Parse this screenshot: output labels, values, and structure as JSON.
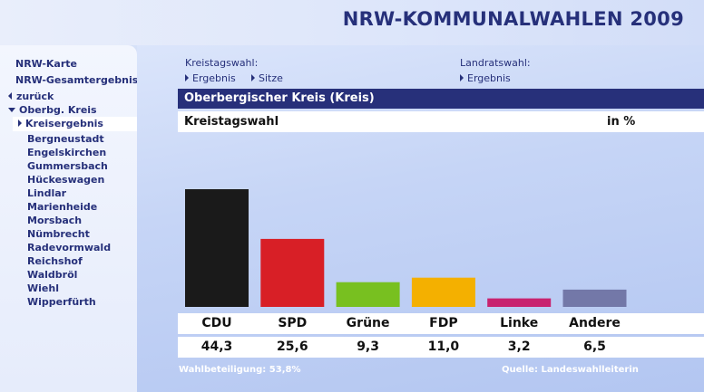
{
  "header": {
    "title": "NRW-KOMMUNALWAHLEN 2009"
  },
  "sidebar": {
    "top_links": [
      "NRW-Karte",
      "NRW-Gesamtergebnis"
    ],
    "back_label": "zurück",
    "section_label": "Oberbg. Kreis",
    "current_item": "Kreisergebnis",
    "items": [
      "Bergneustadt",
      "Engelskirchen",
      "Gummersbach",
      "Hückeswagen",
      "Lindlar",
      "Marienheide",
      "Morsbach",
      "Nümbrecht",
      "Radevormwald",
      "Reichshof",
      "Waldbröl",
      "Wiehl",
      "Wipperfürth"
    ]
  },
  "topnav": {
    "kreistag_label": "Kreistagswahl:",
    "kreistag_links": [
      "Ergebnis",
      "Sitze"
    ],
    "landrat_label": "Landratswahl:",
    "landrat_links": [
      "Ergebnis"
    ]
  },
  "main": {
    "region_title": "Oberbergischer Kreis (Kreis)",
    "election_title": "Kreistagswahl",
    "unit": "in %"
  },
  "footer": {
    "turnout": "Wahlbeteiligung: 53,8%",
    "source": "Quelle: Landeswahlleiterin"
  },
  "chart_data": {
    "type": "bar",
    "categories": [
      "CDU",
      "SPD",
      "Grüne",
      "FDP",
      "Linke",
      "Andere"
    ],
    "values": [
      44.3,
      25.6,
      9.3,
      11.0,
      3.2,
      6.5
    ],
    "value_labels": [
      "44,3",
      "25,6",
      "9,3",
      "11,0",
      "3,2",
      "6,5"
    ],
    "colors": [
      "#1a1a1a",
      "#d81f26",
      "#78c020",
      "#f4b000",
      "#c8236f",
      "#7378a8"
    ],
    "title": "",
    "xlabel": "",
    "ylabel": "",
    "ylim": [
      0,
      44.3
    ],
    "grid": false,
    "legend": "none"
  }
}
